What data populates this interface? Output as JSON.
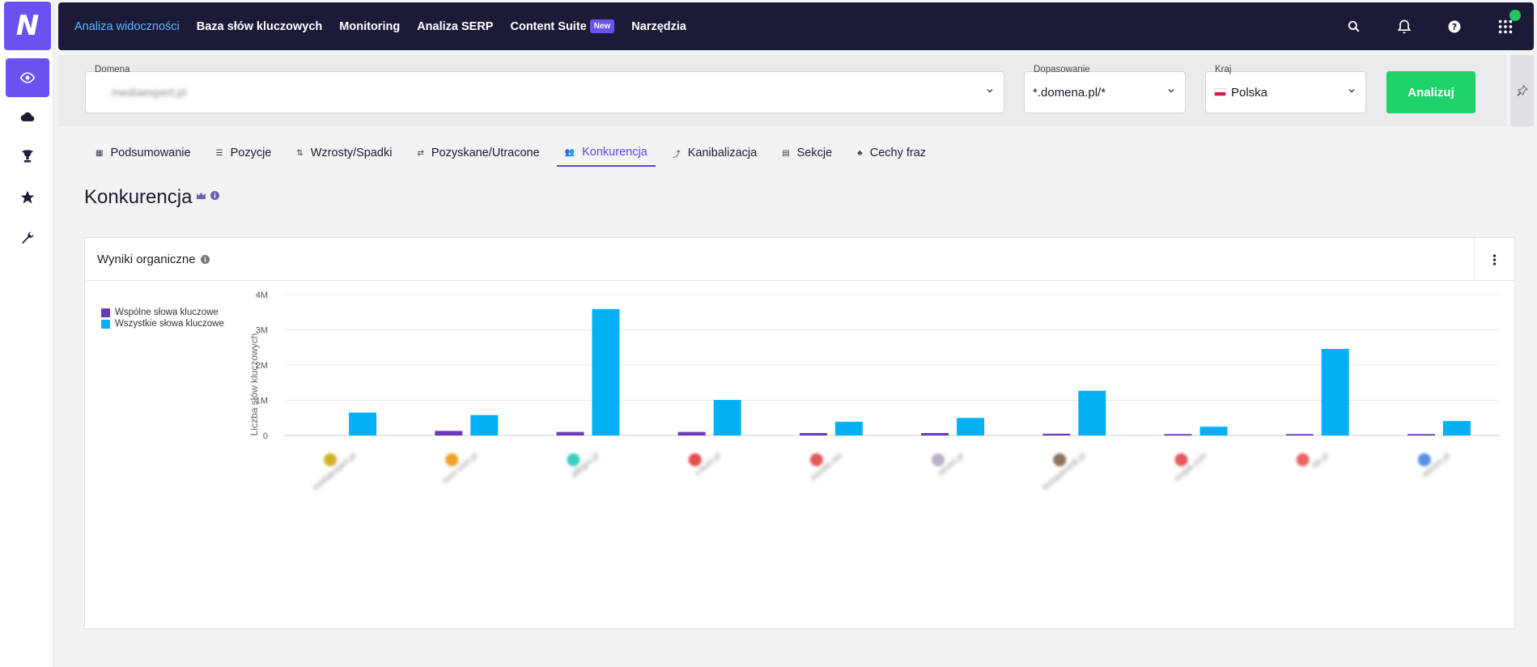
{
  "rail": {
    "logo_letter": "N",
    "items": [
      {
        "icon": "eye-icon",
        "active": true
      },
      {
        "icon": "cloud-icon",
        "active": false
      },
      {
        "icon": "trophy-icon",
        "active": false
      },
      {
        "icon": "star-icon",
        "active": false
      },
      {
        "icon": "wrench-icon",
        "active": false
      }
    ]
  },
  "nav": {
    "links": [
      {
        "label": "Analiza widoczności",
        "active": true
      },
      {
        "label": "Baza słów kluczowych",
        "active": false
      },
      {
        "label": "Monitoring",
        "active": false
      },
      {
        "label": "Analiza SERP",
        "active": false
      },
      {
        "label": "Content Suite",
        "active": false,
        "badge": "New"
      },
      {
        "label": "Narzędzia",
        "active": false
      }
    ],
    "icons": [
      "search-icon",
      "bell-icon",
      "help-icon",
      "apps-grid-icon"
    ]
  },
  "filters": {
    "domain_label": "Domena",
    "domain_value": "mediaexpert.pl",
    "match_label": "Dopasowanie",
    "match_value": "*.domena.pl/*",
    "country_label": "Kraj",
    "country_value": "Polska",
    "analyze_label": "Analizuj"
  },
  "tabs": [
    {
      "label": "Podsumowanie",
      "icon": "dashboard-icon",
      "glyph": "▦",
      "active": false
    },
    {
      "label": "Pozycje",
      "icon": "list-icon",
      "glyph": "☰",
      "active": false
    },
    {
      "label": "Wzrosty/Spadki",
      "icon": "up-down-icon",
      "glyph": "⇅",
      "active": false
    },
    {
      "label": "Pozyskane/Utracone",
      "icon": "swap-icon",
      "glyph": "⇄",
      "active": false
    },
    {
      "label": "Konkurencja",
      "icon": "people-icon",
      "glyph": "👥",
      "active": true
    },
    {
      "label": "Kanibalizacja",
      "icon": "merge-icon",
      "glyph": "⤴",
      "active": false
    },
    {
      "label": "Sekcje",
      "icon": "sections-icon",
      "glyph": "▤",
      "active": false
    },
    {
      "label": "Cechy fraz",
      "icon": "shapes-icon",
      "glyph": "♣",
      "active": false
    }
  ],
  "page_title": "Konkurencja",
  "card": {
    "title": "Wyniki organiczne"
  },
  "colors": {
    "common": "#6a3ab8",
    "all": "#05b0f5",
    "accent": "#6a52f0",
    "analyze": "#1fd26a"
  },
  "chart_data": {
    "type": "bar",
    "ylabel": "Liczba słów kluczowych",
    "ylim": [
      0,
      4000000
    ],
    "yticks": [
      0,
      1000000,
      2000000,
      3000000,
      4000000
    ],
    "ytick_labels": [
      "0",
      "1M",
      "2M",
      "3M",
      "4M"
    ],
    "legend_position": "top-left",
    "grid": true,
    "categories": [
      "mediaexpert.pl",
      "euro.com.pl",
      "allegro.pl",
      "x-kom.pl",
      "morele.net",
      "ceneo.pl",
      "komputronik.pl",
      "empik.com",
      "olx.pl",
      "electro.pl"
    ],
    "category_icon_colors": [
      "#c8a400",
      "#f08c00",
      "#16c6b8",
      "#e03030",
      "#e03a3a",
      "#b0a0c0",
      "#7a5a40",
      "#e03a3a",
      "#e04848",
      "#3a7ee0"
    ],
    "series": [
      {
        "name": "Wspólne słowa kluczowe",
        "values": [
          0,
          130000,
          100000,
          100000,
          70000,
          70000,
          50000,
          40000,
          40000,
          40000
        ]
      },
      {
        "name": "Wszystkie słowa kluczowe",
        "values": [
          650000,
          580000,
          3590000,
          1010000,
          390000,
          500000,
          1270000,
          250000,
          2460000,
          410000
        ]
      }
    ]
  }
}
